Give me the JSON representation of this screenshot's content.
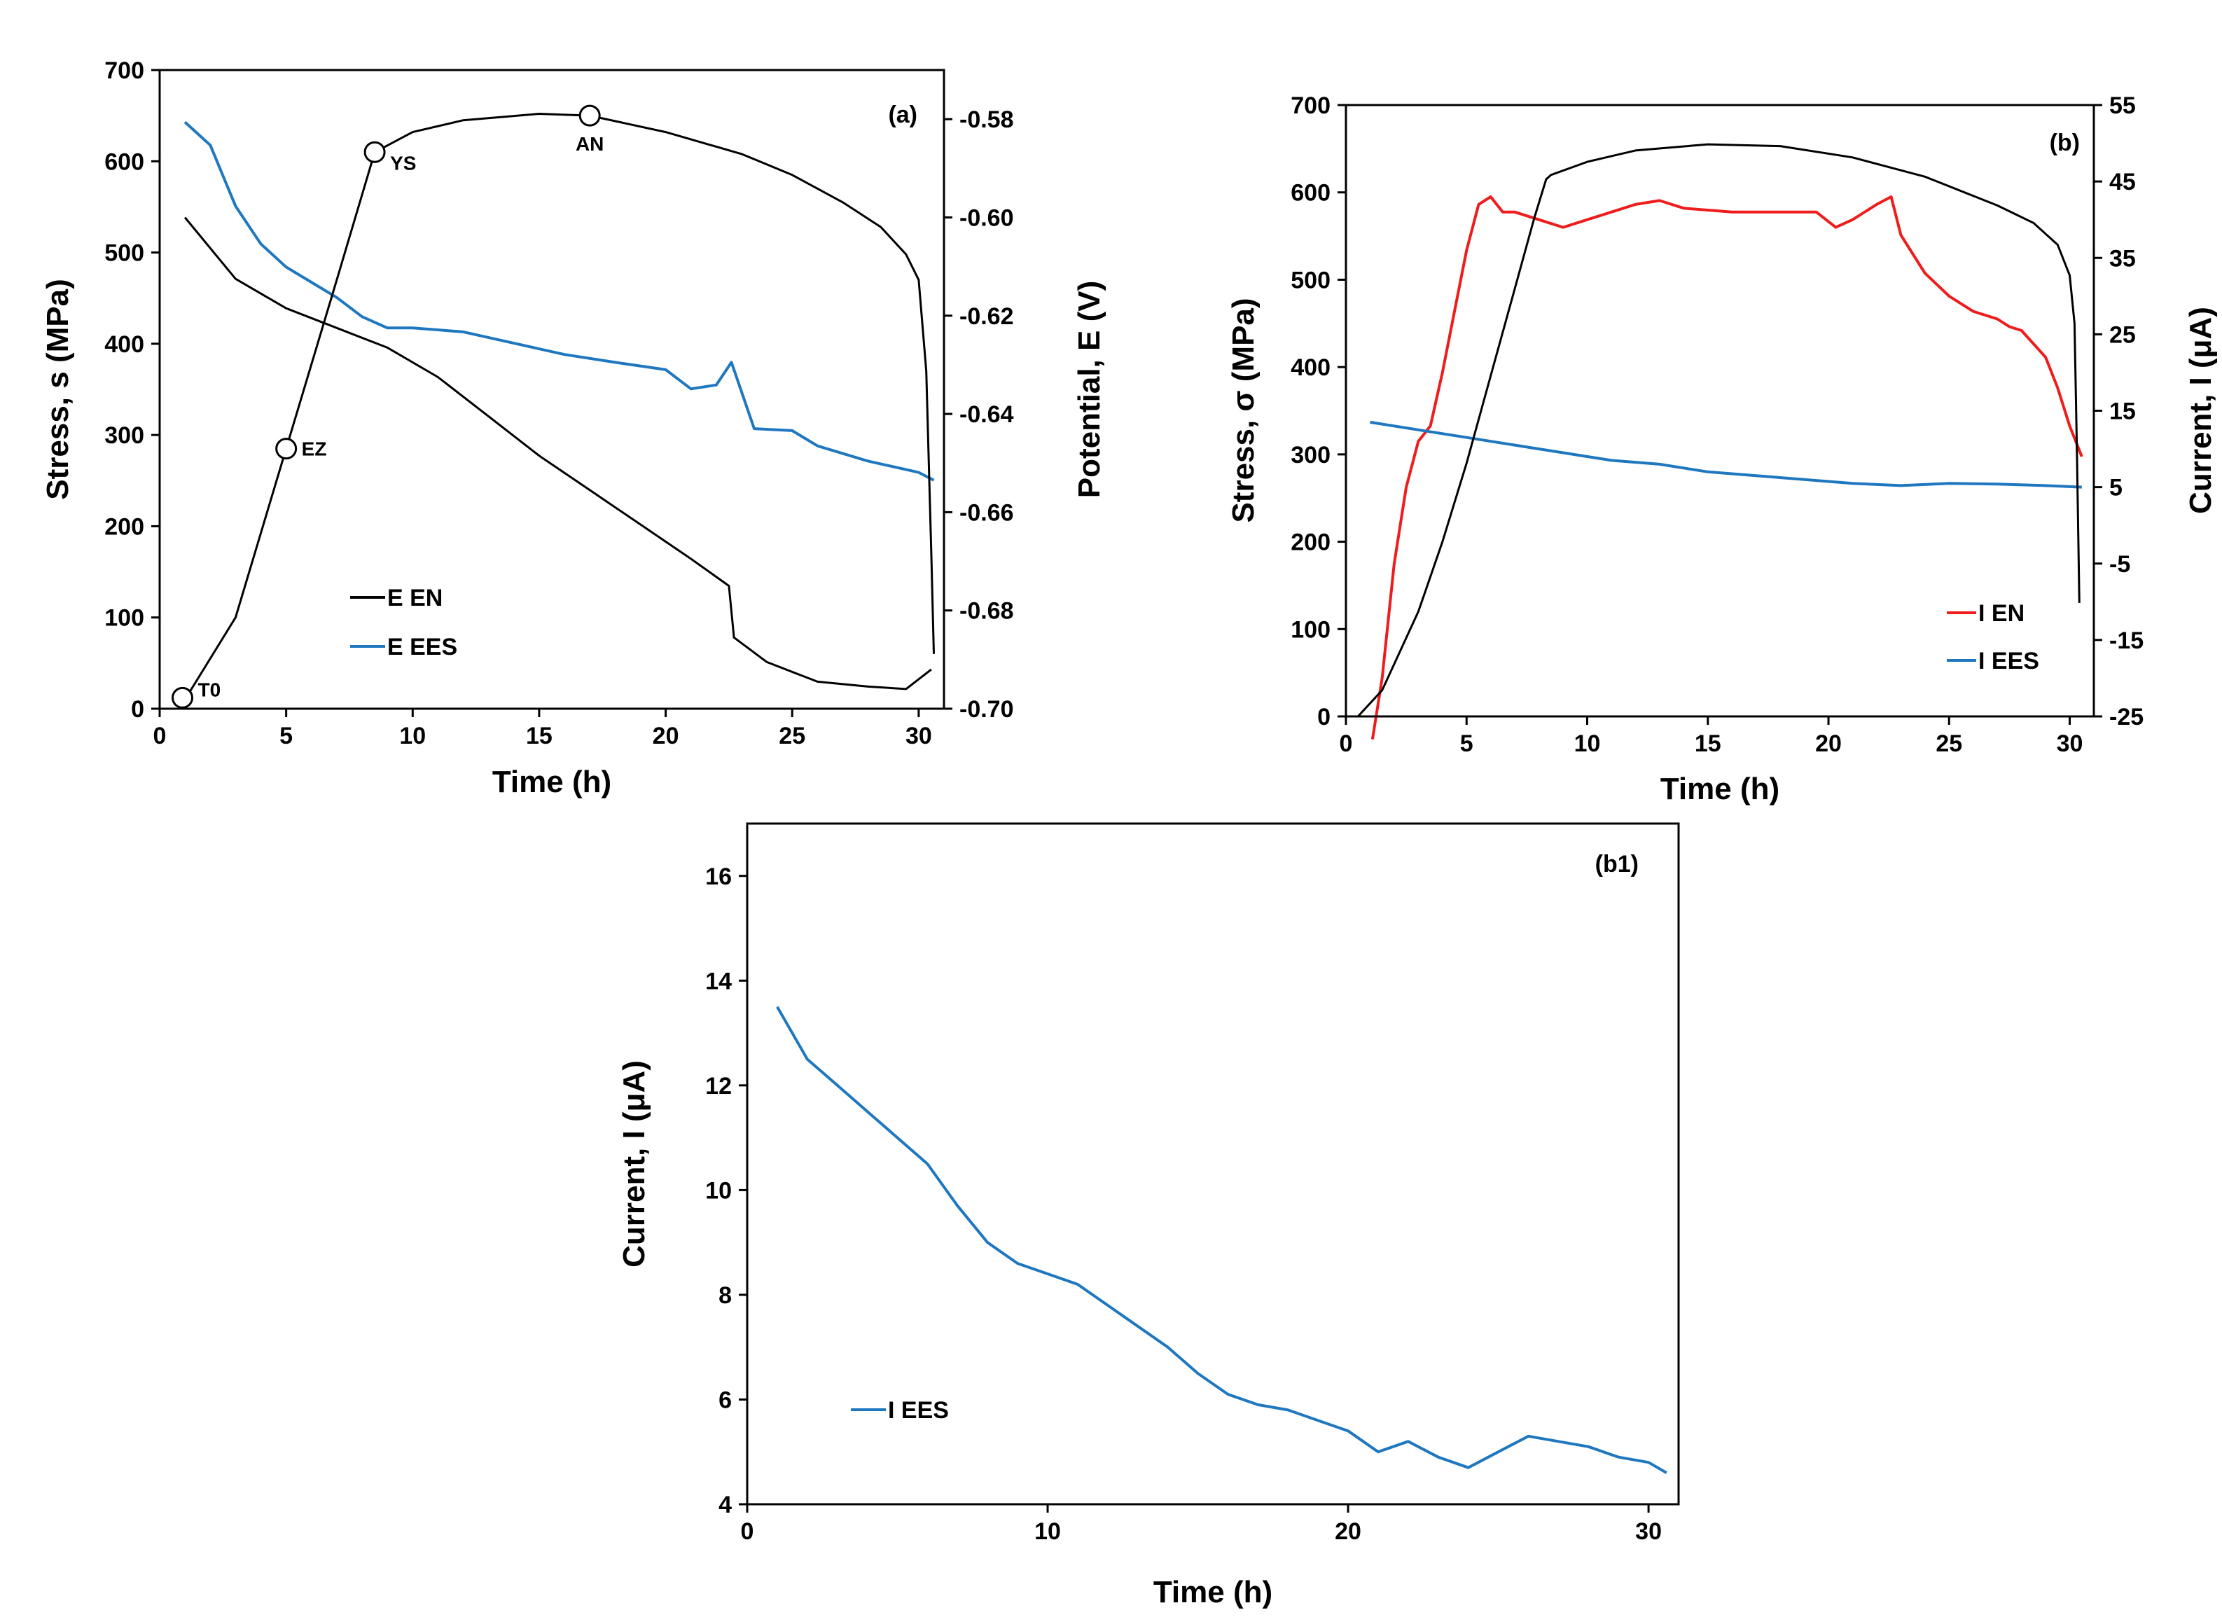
{
  "chart_data": [
    {
      "panel": "(a)",
      "type": "line",
      "xlabel": "Time (h)",
      "ylabel": "Stress, s (MPa)",
      "y2label": "Potential, E (V)",
      "xlim": [
        0,
        31
      ],
      "ylim": [
        0,
        700
      ],
      "y2lim": [
        -0.7,
        -0.57
      ],
      "xticks": [
        0,
        5,
        10,
        15,
        20,
        25,
        30
      ],
      "yticks": [
        0,
        100,
        200,
        300,
        400,
        500,
        600,
        700
      ],
      "y2ticks": [
        "-0.70",
        "-0.68",
        "-0.66",
        "-0.64",
        "-0.62",
        "-0.60",
        "-0.58"
      ],
      "legend_position": "lower-left",
      "series": [
        {
          "name": "E EN",
          "axis": "right",
          "color": "#000000",
          "points": [
            [
              1,
              -0.6
            ],
            [
              3,
              -0.6125
            ],
            [
              5,
              -0.6185
            ],
            [
              7,
              -0.6225
            ],
            [
              9,
              -0.6265
            ],
            [
              11,
              -0.6325
            ],
            [
              13,
              -0.6405
            ],
            [
              15,
              -0.6485
            ],
            [
              17,
              -0.6555
            ],
            [
              19,
              -0.6625
            ],
            [
              21,
              -0.6695
            ],
            [
              22.5,
              -0.675
            ],
            [
              22.7,
              -0.6855
            ],
            [
              24,
              -0.6905
            ],
            [
              26,
              -0.6945
            ],
            [
              28,
              -0.6955
            ],
            [
              29.5,
              -0.696
            ],
            [
              30.5,
              -0.692
            ]
          ]
        },
        {
          "name": "E EES",
          "axis": "right",
          "color": "#1f77c0",
          "points": [
            [
              1,
              -0.5806
            ],
            [
              2,
              -0.5853
            ],
            [
              3,
              -0.5977
            ],
            [
              4,
              -0.6054
            ],
            [
              5,
              -0.6101
            ],
            [
              6,
              -0.6132
            ],
            [
              7,
              -0.6163
            ],
            [
              8,
              -0.6202
            ],
            [
              9,
              -0.6225
            ],
            [
              10,
              -0.6225
            ],
            [
              12,
              -0.6233
            ],
            [
              14,
              -0.6256
            ],
            [
              16,
              -0.6279
            ],
            [
              18,
              -0.6295
            ],
            [
              20,
              -0.631
            ],
            [
              21,
              -0.6349
            ],
            [
              22,
              -0.6341
            ],
            [
              22.6,
              -0.6295
            ],
            [
              23.5,
              -0.643
            ],
            [
              25,
              -0.6434
            ],
            [
              26,
              -0.6465
            ],
            [
              28,
              -0.6496
            ],
            [
              30,
              -0.6519
            ],
            [
              30.6,
              -0.6535
            ]
          ]
        },
        {
          "name": "stress",
          "axis": "left",
          "color": "#000000",
          "points": [
            [
              1,
              10
            ],
            [
              3,
              100
            ],
            [
              5,
              285
            ],
            [
              7,
              470
            ],
            [
              8.5,
              610
            ],
            [
              10,
              632
            ],
            [
              12,
              645
            ],
            [
              15,
              652
            ],
            [
              17,
              650
            ],
            [
              20,
              632
            ],
            [
              23,
              608
            ],
            [
              25,
              585
            ],
            [
              27,
              555
            ],
            [
              28.5,
              528
            ],
            [
              29.5,
              498
            ],
            [
              30,
              470
            ],
            [
              30.3,
              370
            ],
            [
              30.5,
              170
            ],
            [
              30.6,
              60
            ]
          ]
        }
      ],
      "annotations": [
        {
          "label": "T0",
          "x": 0.9,
          "y": 12
        },
        {
          "label": "EZ",
          "x": 5,
          "y": 285
        },
        {
          "label": "YS",
          "x": 8.5,
          "y": 610
        },
        {
          "label": "AN",
          "x": 17,
          "y": 650
        }
      ]
    },
    {
      "panel": "(b)",
      "type": "line",
      "xlabel": "Time (h)",
      "ylabel": "Stress, σ (MPa)",
      "y2label": "Current, I (μA)",
      "xlim": [
        0,
        31
      ],
      "ylim": [
        0,
        700
      ],
      "y2lim": [
        -25,
        55
      ],
      "xticks": [
        0,
        5,
        10,
        15,
        20,
        25,
        30
      ],
      "yticks": [
        0,
        100,
        200,
        300,
        400,
        500,
        600,
        700
      ],
      "y2ticks": [
        -25,
        -15,
        -5,
        5,
        15,
        25,
        35,
        45,
        55
      ],
      "legend_position": "lower-right",
      "series": [
        {
          "name": "I EN",
          "axis": "right",
          "color": "#ee1c1c",
          "points": [
            [
              1.1,
              -28
            ],
            [
              1.5,
              -20
            ],
            [
              2,
              -5
            ],
            [
              2.5,
              5
            ],
            [
              3,
              11
            ],
            [
              3.5,
              13
            ],
            [
              4,
              20
            ],
            [
              4.5,
              28
            ],
            [
              5,
              36
            ],
            [
              5.5,
              42
            ],
            [
              6,
              43
            ],
            [
              6.5,
              41
            ],
            [
              7,
              41
            ],
            [
              8,
              40
            ],
            [
              9,
              39
            ],
            [
              10,
              40
            ],
            [
              11,
              41
            ],
            [
              12,
              42
            ],
            [
              13,
              42.5
            ],
            [
              14,
              41.5
            ],
            [
              16,
              41
            ],
            [
              18,
              41
            ],
            [
              19.5,
              41
            ],
            [
              20.3,
              39
            ],
            [
              21,
              40
            ],
            [
              22,
              42
            ],
            [
              22.6,
              43
            ],
            [
              23,
              38
            ],
            [
              24,
              33
            ],
            [
              25,
              30
            ],
            [
              26,
              28
            ],
            [
              27,
              27
            ],
            [
              27.5,
              26
            ],
            [
              28,
              25.5
            ],
            [
              29,
              22
            ],
            [
              29.5,
              18
            ],
            [
              30,
              13
            ],
            [
              30.5,
              9
            ]
          ]
        },
        {
          "name": "I EES",
          "axis": "right",
          "color": "#1f77c0",
          "points": [
            [
              1,
              13.5
            ],
            [
              3,
              12.5
            ],
            [
              5,
              11.5
            ],
            [
              7,
              10.5
            ],
            [
              9,
              9.5
            ],
            [
              11,
              8.5
            ],
            [
              13,
              8
            ],
            [
              15,
              7
            ],
            [
              17,
              6.5
            ],
            [
              19,
              6
            ],
            [
              21,
              5.5
            ],
            [
              23,
              5.2
            ],
            [
              25,
              5.5
            ],
            [
              27,
              5.4
            ],
            [
              29,
              5.2
            ],
            [
              30.5,
              5
            ]
          ]
        },
        {
          "name": "stress",
          "axis": "left",
          "color": "#000000",
          "points": [
            [
              0.5,
              0
            ],
            [
              1.5,
              30
            ],
            [
              3,
              120
            ],
            [
              4,
              200
            ],
            [
              5,
              290
            ],
            [
              6,
              390
            ],
            [
              7,
              490
            ],
            [
              7.8,
              570
            ],
            [
              8.3,
              615
            ],
            [
              8.5,
              620
            ],
            [
              10,
              635
            ],
            [
              12,
              648
            ],
            [
              15,
              655
            ],
            [
              18,
              653
            ],
            [
              21,
              640
            ],
            [
              24,
              618
            ],
            [
              27,
              585
            ],
            [
              28.5,
              565
            ],
            [
              29.5,
              540
            ],
            [
              30,
              505
            ],
            [
              30.2,
              450
            ],
            [
              30.3,
              300
            ],
            [
              30.4,
              130
            ]
          ]
        }
      ]
    },
    {
      "panel": "(b1)",
      "type": "line",
      "xlabel": "Time (h)",
      "ylabel": "Current, I  (μA)",
      "xlim": [
        0,
        31
      ],
      "ylim": [
        4,
        17
      ],
      "xticks": [
        0,
        10,
        20,
        30
      ],
      "yticks": [
        4,
        6,
        8,
        10,
        12,
        14,
        16
      ],
      "legend_position": "lower-left",
      "series": [
        {
          "name": "I EES",
          "color": "#1f77c0",
          "points": [
            [
              1,
              13.5
            ],
            [
              2,
              12.5
            ],
            [
              3,
              12
            ],
            [
              4,
              11.5
            ],
            [
              5,
              11
            ],
            [
              6,
              10.5
            ],
            [
              7,
              9.7
            ],
            [
              8,
              9
            ],
            [
              9,
              8.6
            ],
            [
              10,
              8.4
            ],
            [
              11,
              8.2
            ],
            [
              12,
              7.8
            ],
            [
              13,
              7.4
            ],
            [
              14,
              7
            ],
            [
              15,
              6.5
            ],
            [
              16,
              6.1
            ],
            [
              17,
              5.9
            ],
            [
              18,
              5.8
            ],
            [
              19,
              5.6
            ],
            [
              20,
              5.4
            ],
            [
              21,
              5
            ],
            [
              22,
              5.2
            ],
            [
              23,
              4.9
            ],
            [
              24,
              4.7
            ],
            [
              25,
              5
            ],
            [
              26,
              5.3
            ],
            [
              27,
              5.2
            ],
            [
              28,
              5.1
            ],
            [
              29,
              4.9
            ],
            [
              30,
              4.8
            ],
            [
              30.6,
              4.6
            ]
          ]
        }
      ]
    }
  ]
}
